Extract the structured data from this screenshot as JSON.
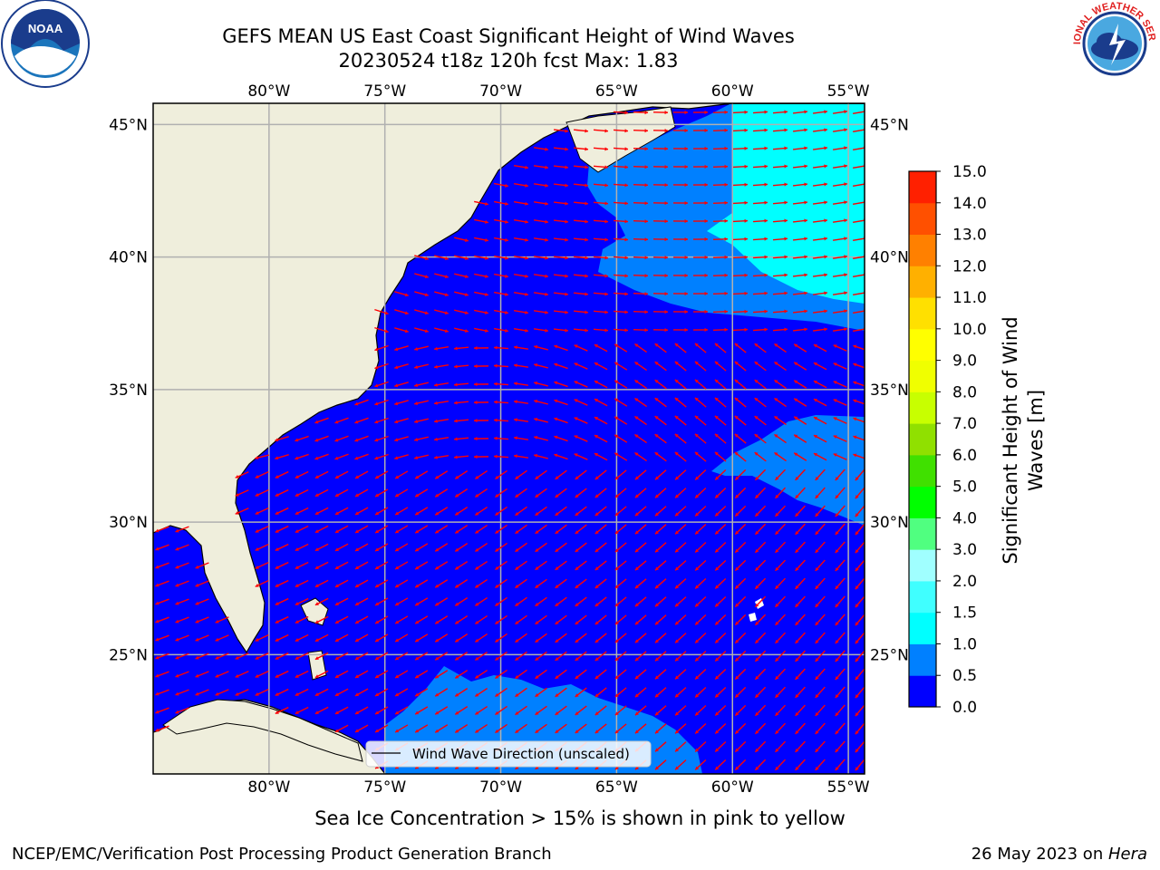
{
  "title": {
    "line1": "GEFS MEAN US East Coast Significant Height of Wind Waves",
    "line2": "20230524 t18z 120h fcst   Max: 1.83"
  },
  "map": {
    "lon_range": [
      -85,
      -54.3
    ],
    "lat_range": [
      20.5,
      45.8
    ],
    "lon_ticks": [
      "80°W",
      "75°W",
      "70°W",
      "65°W",
      "60°W",
      "55°W"
    ],
    "lat_ticks": [
      "45°N",
      "40°N",
      "35°N",
      "30°N",
      "25°N"
    ],
    "colors": {
      "land": "#efeedc",
      "ocean_0_05": "#0000ff",
      "ocean_05_10": "#0080ff",
      "ocean_10_15": "#00ffff",
      "arrow": "#ff0000",
      "grid": "#b0b0b0"
    },
    "legend_label": "Wind Wave Direction (unscaled)"
  },
  "colorbar": {
    "label_line1": "Significant Height of Wind",
    "label_line2": "Waves [m]",
    "ticks": [
      "0.0",
      "0.5",
      "1.0",
      "1.5",
      "2.0",
      "3.0",
      "4.0",
      "5.0",
      "6.0",
      "7.0",
      "8.0",
      "9.0",
      "10.0",
      "11.0",
      "12.0",
      "13.0",
      "14.0",
      "15.0"
    ],
    "colors": [
      "#0000ff",
      "#0080ff",
      "#00ffff",
      "#40ffff",
      "#a0ffff",
      "#50ff80",
      "#00ff00",
      "#40e000",
      "#90e000",
      "#c8ff00",
      "#f0ff00",
      "#ffff00",
      "#ffe000",
      "#ffb000",
      "#ff8000",
      "#ff5000",
      "#ff2000"
    ]
  },
  "footer": {
    "note": "Sea Ice Concentration > 15% is shown in pink to yellow",
    "credit_left": "NCEP/EMC/Verification Post Processing Product Generation Branch",
    "credit_right_prefix": "26 May 2023 on ",
    "credit_right_host": "Hera"
  },
  "logos": {
    "left_text": "NOAA",
    "right_text": "NATIONAL WEATHER SERVICE"
  }
}
